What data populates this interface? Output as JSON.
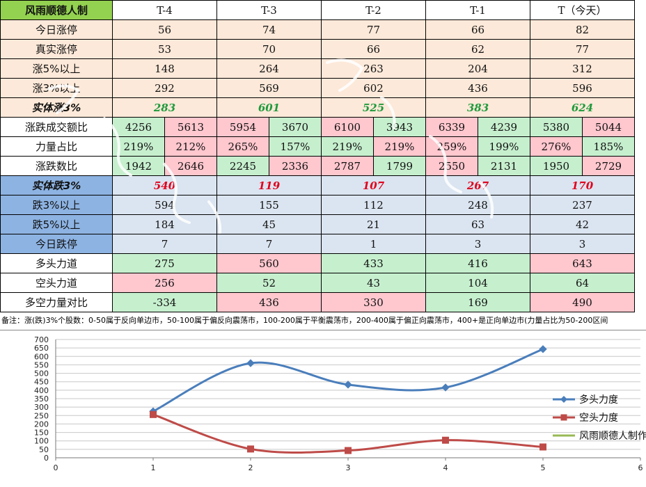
{
  "table": {
    "title": "风雨顺德人制",
    "headers": [
      "T-4",
      "T-3",
      "T-2",
      "T-1",
      "T（今天）"
    ],
    "rows": [
      {
        "label": "今日涨停",
        "values": [
          "56",
          "74",
          "77",
          "66",
          "82"
        ]
      },
      {
        "label": "真实涨停",
        "values": [
          "53",
          "70",
          "66",
          "62",
          "77"
        ]
      },
      {
        "label": "涨5%以上",
        "values": [
          "148",
          "264",
          "263",
          "204",
          "312"
        ]
      },
      {
        "label": "涨3%以上",
        "values": [
          "292",
          "569",
          "602",
          "436",
          "596"
        ]
      },
      {
        "label": "实体涨3%",
        "values": [
          "283",
          "601",
          "525",
          "383",
          "624"
        ]
      },
      {
        "label": "涨跌成交额比",
        "pairs": [
          [
            "4256",
            "5613"
          ],
          [
            "5954",
            "3670"
          ],
          [
            "6100",
            "3943"
          ],
          [
            "6339",
            "4239"
          ],
          [
            "5380",
            "5044"
          ]
        ]
      },
      {
        "label": "力量占比",
        "pairs": [
          [
            "219%",
            "212%"
          ],
          [
            "265%",
            "157%"
          ],
          [
            "219%",
            "219%"
          ],
          [
            "259%",
            "199%"
          ],
          [
            "276%",
            "185%"
          ]
        ]
      },
      {
        "label": "涨跌数比",
        "pairs": [
          [
            "1942",
            "2646"
          ],
          [
            "2245",
            "2336"
          ],
          [
            "2787",
            "1799"
          ],
          [
            "2550",
            "2131"
          ],
          [
            "1950",
            "2729"
          ]
        ]
      },
      {
        "label": "实体跌3%",
        "values": [
          "540",
          "119",
          "107",
          "267",
          "170"
        ]
      },
      {
        "label": "跌3%以上",
        "values": [
          "594",
          "155",
          "112",
          "248",
          "237"
        ]
      },
      {
        "label": "跌5%以上",
        "values": [
          "184",
          "45",
          "21",
          "63",
          "42"
        ]
      },
      {
        "label": "今日跌停",
        "values": [
          "7",
          "7",
          "1",
          "3",
          "3"
        ]
      },
      {
        "label": "多头力道",
        "values": [
          "275",
          "560",
          "433",
          "416",
          "643"
        ]
      },
      {
        "label": "空头力道",
        "values": [
          "256",
          "52",
          "43",
          "104",
          "64"
        ]
      },
      {
        "label": "多空力量对比",
        "values": [
          "-334",
          "436",
          "330",
          "169",
          "490"
        ]
      }
    ]
  },
  "note": "备注：涨(跌)3%个股数：0-50属于反向单边市，50-100属于偏反向震荡市，100-200属于平衡震荡市，200-400属于偏正向震荡市，400+是正向单边市(力量占比为50-200区间",
  "colors": {
    "peach": "#fde9d9",
    "light_blue": "#dbe5f1",
    "blue_label": "#8db3e2",
    "title_green": "#93d150",
    "good_green": "#c6efce",
    "bad_red": "#ffc7ce",
    "series_bull": "#4a7ebb",
    "series_bear": "#be4b48",
    "series_third": "#98b954"
  },
  "chart_data": {
    "type": "scatter",
    "x_ticks": [
      "0",
      "1",
      "2",
      "3",
      "4",
      "5",
      "6"
    ],
    "y_ticks": [
      "0",
      "50",
      "100",
      "150",
      "200",
      "250",
      "300",
      "350",
      "400",
      "450",
      "500",
      "550",
      "600",
      "650",
      "700"
    ],
    "xlim": [
      0,
      6
    ],
    "ylim": [
      0,
      700
    ],
    "grid": true,
    "legend_position": "right",
    "series": [
      {
        "name": "多头力度",
        "color": "#4a7ebb",
        "marker": "diamond",
        "x": [
          1,
          2,
          3,
          4,
          5
        ],
        "y": [
          275,
          560,
          433,
          416,
          643
        ]
      },
      {
        "name": "空头力度",
        "color": "#be4b48",
        "marker": "square",
        "x": [
          1,
          2,
          3,
          4,
          5
        ],
        "y": [
          256,
          52,
          43,
          104,
          64
        ]
      },
      {
        "name": "风雨顺德人制作",
        "color": "#98b954",
        "marker": "none",
        "x": [],
        "y": []
      }
    ]
  }
}
